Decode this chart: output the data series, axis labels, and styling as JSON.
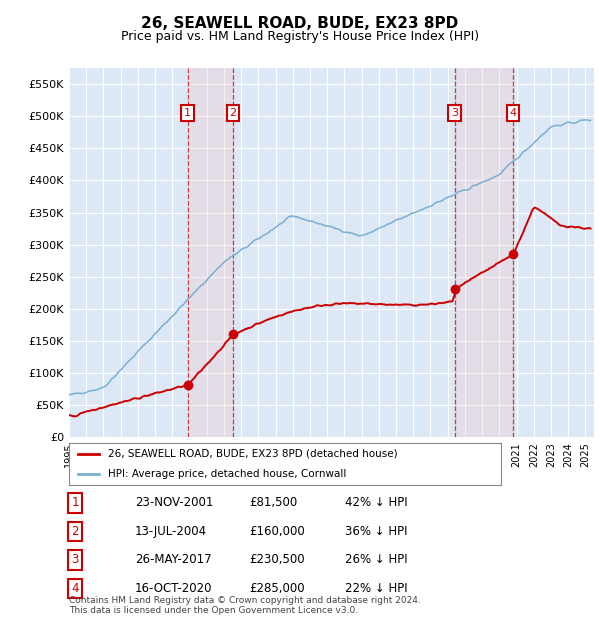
{
  "title": "26, SEAWELL ROAD, BUDE, EX23 8PD",
  "subtitle": "Price paid vs. HM Land Registry's House Price Index (HPI)",
  "ylim": [
    0,
    575000
  ],
  "yticks": [
    0,
    50000,
    100000,
    150000,
    200000,
    250000,
    300000,
    350000,
    400000,
    450000,
    500000,
    550000
  ],
  "ytick_labels": [
    "£0",
    "£50K",
    "£100K",
    "£150K",
    "£200K",
    "£250K",
    "£300K",
    "£350K",
    "£400K",
    "£450K",
    "£500K",
    "£550K"
  ],
  "background_color": "#ffffff",
  "plot_bg_color": "#dce8f5",
  "grid_color": "#ffffff",
  "title_fontsize": 11,
  "subtitle_fontsize": 9,
  "xlim_start": 1995,
  "xlim_end": 2025.5,
  "transactions": [
    {
      "label": "1",
      "date": "23-NOV-2001",
      "date_num": 2001.9,
      "price": 81500,
      "pct": "42% ↓ HPI"
    },
    {
      "label": "2",
      "date": "13-JUL-2004",
      "date_num": 2004.53,
      "price": 160000,
      "pct": "36% ↓ HPI"
    },
    {
      "label": "3",
      "date": "26-MAY-2017",
      "date_num": 2017.4,
      "price": 230500,
      "pct": "26% ↓ HPI"
    },
    {
      "label": "4",
      "date": "16-OCT-2020",
      "date_num": 2020.79,
      "price": 285000,
      "pct": "22% ↓ HPI"
    }
  ],
  "legend_entries": [
    "26, SEAWELL ROAD, BUDE, EX23 8PD (detached house)",
    "HPI: Average price, detached house, Cornwall"
  ],
  "footer": "Contains HM Land Registry data © Crown copyright and database right 2024.\nThis data is licensed under the Open Government Licence v3.0.",
  "line_color_red": "#cc0000",
  "line_color_blue": "#7aafd4",
  "table_data": [
    [
      "1",
      "23-NOV-2001",
      "£81,500",
      "42% ↓ HPI"
    ],
    [
      "2",
      "13-JUL-2004",
      "£160,000",
      "36% ↓ HPI"
    ],
    [
      "3",
      "26-MAY-2017",
      "£230,500",
      "26% ↓ HPI"
    ],
    [
      "4",
      "16-OCT-2020",
      "£285,000",
      "22% ↓ HPI"
    ]
  ]
}
